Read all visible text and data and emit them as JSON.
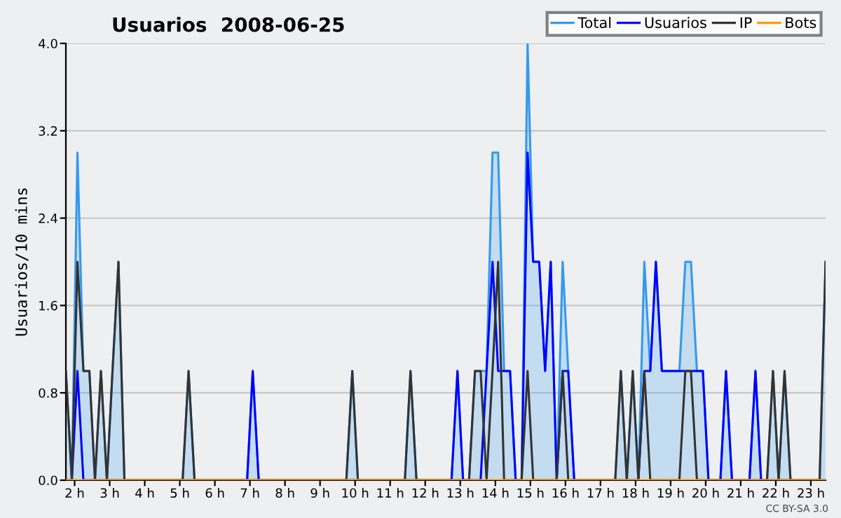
{
  "chart_data": {
    "type": "line",
    "title": "Usuarios  2008-06-25",
    "ylabel": "Usuarios/10 mins",
    "annotations": [
      "CC BY-SA 3.0"
    ],
    "xlim": [
      1.75,
      23.42
    ],
    "ylim": [
      0.0,
      4.0
    ],
    "xticks": [
      {
        "value": 2,
        "label": "2 h"
      },
      {
        "value": 3,
        "label": "3 h"
      },
      {
        "value": 4,
        "label": "4 h"
      },
      {
        "value": 5,
        "label": "5 h"
      },
      {
        "value": 6,
        "label": "6 h"
      },
      {
        "value": 7,
        "label": "7 h"
      },
      {
        "value": 8,
        "label": "8 h"
      },
      {
        "value": 9,
        "label": "9 h"
      },
      {
        "value": 10,
        "label": "10 h"
      },
      {
        "value": 11,
        "label": "11 h"
      },
      {
        "value": 12,
        "label": "12 h"
      },
      {
        "value": 13,
        "label": "13 h"
      },
      {
        "value": 14,
        "label": "14 h"
      },
      {
        "value": 15,
        "label": "15 h"
      },
      {
        "value": 16,
        "label": "16 h"
      },
      {
        "value": 17,
        "label": "17 h"
      },
      {
        "value": 18,
        "label": "18 h"
      },
      {
        "value": 19,
        "label": "19 h"
      },
      {
        "value": 20,
        "label": "20 h"
      },
      {
        "value": 21,
        "label": "21 h"
      },
      {
        "value": 22,
        "label": "22 h"
      },
      {
        "value": 23,
        "label": "23 h"
      }
    ],
    "yticks": [
      {
        "value": 0.0,
        "label": "0.0"
      },
      {
        "value": 0.8,
        "label": "0.8"
      },
      {
        "value": 1.6,
        "label": "1.6"
      },
      {
        "value": 2.4,
        "label": "2.4"
      },
      {
        "value": 3.2,
        "label": "3.2"
      },
      {
        "value": 4.0,
        "label": "4.0"
      }
    ],
    "grid": "y",
    "legend": "top right",
    "marker": "none",
    "line_style": "solid",
    "series": [
      {
        "name": "Total",
        "type": "area",
        "color": "#3399ee",
        "x": [
          1.75,
          1.92,
          2.08,
          2.25,
          2.42,
          2.58,
          2.75,
          2.92,
          3.08,
          3.25,
          3.42,
          5.08,
          5.25,
          5.42,
          6.92,
          7.08,
          7.25,
          9.75,
          9.92,
          10.08,
          11.42,
          11.58,
          11.75,
          12.75,
          12.92,
          13.08,
          13.25,
          13.42,
          13.58,
          13.75,
          13.92,
          14.08,
          14.25,
          14.42,
          14.58,
          14.75,
          14.92,
          15.08,
          15.25,
          15.42,
          15.58,
          15.75,
          15.92,
          16.08,
          16.25,
          17.42,
          17.58,
          17.75,
          17.92,
          18.08,
          18.25,
          18.42,
          18.58,
          18.75,
          19.25,
          19.42,
          19.58,
          19.75,
          19.92,
          20.08,
          20.42,
          20.58,
          20.75,
          21.25,
          21.42,
          21.58,
          21.75,
          21.92,
          22.08,
          22.25,
          22.42,
          23.25,
          23.42
        ],
        "values": [
          1,
          0,
          3,
          1,
          1,
          0,
          1,
          0,
          1,
          2,
          0,
          0,
          1,
          0,
          0,
          1,
          0,
          0,
          1,
          0,
          0,
          1,
          0,
          0,
          1,
          0,
          0,
          1,
          1,
          1,
          3,
          3,
          1,
          1,
          0,
          0,
          4,
          2,
          2,
          1,
          2,
          0,
          2,
          1,
          0,
          0,
          1,
          0,
          1,
          0,
          2,
          1,
          2,
          1,
          1,
          2,
          2,
          1,
          1,
          0,
          0,
          1,
          0,
          0,
          1,
          0,
          0,
          1,
          0,
          1,
          0,
          0,
          2
        ]
      },
      {
        "name": "Usuarios",
        "color": "#0000ff",
        "x": [
          1.75,
          1.92,
          2.08,
          2.25,
          6.92,
          7.08,
          7.25,
          12.75,
          12.92,
          13.08,
          13.58,
          13.75,
          13.92,
          14.08,
          14.25,
          14.42,
          14.58,
          14.75,
          14.92,
          15.08,
          15.25,
          15.42,
          15.58,
          15.75,
          15.92,
          16.08,
          16.25,
          18.08,
          18.25,
          18.42,
          18.58,
          18.75,
          19.92,
          20.08,
          20.42,
          20.58,
          20.75,
          21.25,
          21.42,
          21.58,
          23.42
        ],
        "values": [
          0,
          0,
          1,
          0,
          0,
          1,
          0,
          0,
          1,
          0,
          0,
          1,
          2,
          1,
          1,
          1,
          0,
          0,
          3,
          2,
          2,
          1,
          2,
          0,
          1,
          1,
          0,
          0,
          1,
          1,
          2,
          1,
          1,
          0,
          0,
          1,
          0,
          0,
          1,
          0,
          0
        ]
      },
      {
        "name": "IP",
        "color": "#333333",
        "x": [
          1.75,
          1.92,
          2.08,
          2.25,
          2.42,
          2.58,
          2.75,
          2.92,
          3.08,
          3.25,
          3.42,
          5.08,
          5.25,
          5.42,
          9.75,
          9.92,
          10.08,
          11.42,
          11.58,
          11.75,
          13.25,
          13.42,
          13.58,
          13.75,
          13.92,
          14.08,
          14.25,
          14.75,
          14.92,
          15.08,
          15.75,
          15.92,
          16.08,
          17.42,
          17.58,
          17.75,
          17.92,
          18.08,
          18.25,
          18.42,
          19.25,
          19.42,
          19.58,
          19.75,
          21.75,
          21.92,
          22.08,
          22.25,
          22.42,
          23.25,
          23.42
        ],
        "values": [
          1,
          0,
          2,
          1,
          1,
          0,
          1,
          0,
          1,
          2,
          0,
          0,
          1,
          0,
          0,
          1,
          0,
          0,
          1,
          0,
          0,
          1,
          1,
          0,
          1,
          2,
          0,
          0,
          1,
          0,
          0,
          1,
          0,
          0,
          1,
          0,
          1,
          0,
          1,
          0,
          0,
          1,
          1,
          0,
          0,
          1,
          0,
          1,
          0,
          0,
          2
        ]
      },
      {
        "name": "Bots",
        "color": "#ff9900",
        "x": [
          1.75,
          23.42
        ],
        "values": [
          0,
          0
        ]
      }
    ]
  }
}
